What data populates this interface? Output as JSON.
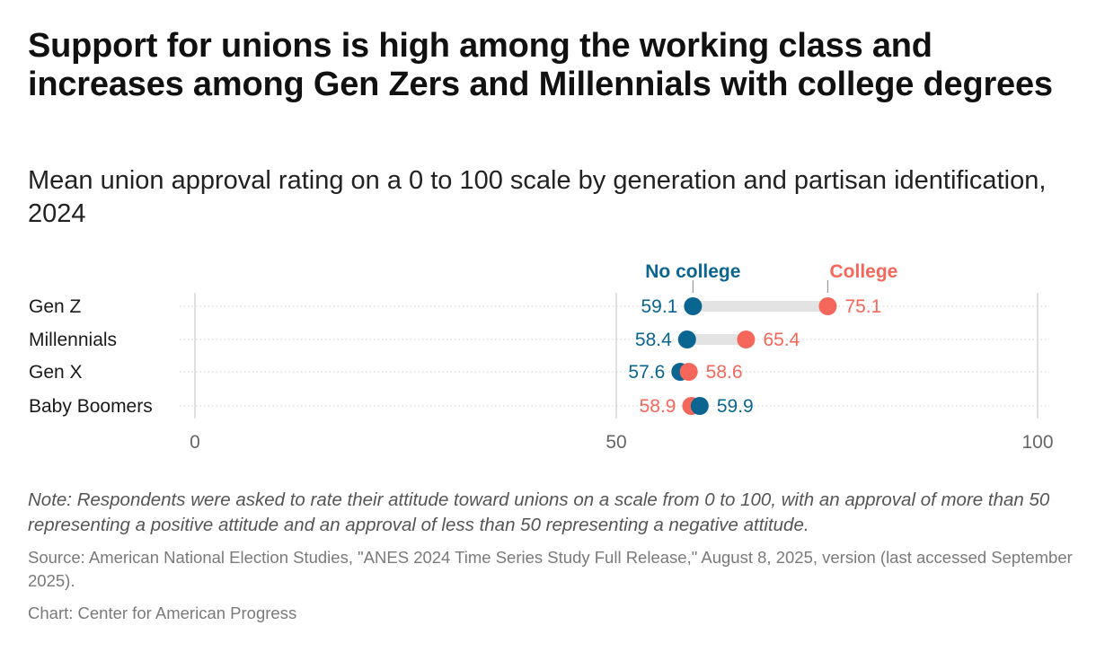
{
  "title": "Support for unions is high among the working class and increases among Gen Zers and Millennials with college degrees",
  "subtitle": "Mean union approval rating on a 0 to 100 scale by generation and partisan identification, 2024",
  "note": "Note: Respondents were asked to rate their attitude toward unions on a scale from 0 to 100, with an approval of more than 50 representing a positive attitude and an approval of less than 50 representing a negative attitude.",
  "source": "Source: American National Election Studies, \"ANES 2024 Time Series Study Full Release,\" August 8, 2025, version (last accessed September 2025).",
  "credit": "Chart: Center for American Progress",
  "colors": {
    "no_college": "#0b6591",
    "college": "#f4675a",
    "connector": "#e3e3e3",
    "grid": "#d5d5d5",
    "row_line": "#cfcfcf",
    "label": "#1a1a1a",
    "tick": "#666666"
  },
  "chart_data": {
    "type": "dumbbell",
    "categories": [
      "Gen Z",
      "Millennials",
      "Gen X",
      "Baby Boomers"
    ],
    "series": [
      {
        "name": "No college",
        "values": [
          59.1,
          58.4,
          57.6,
          59.9
        ]
      },
      {
        "name": "College",
        "values": [
          75.1,
          65.4,
          58.6,
          58.9
        ]
      }
    ],
    "value_labels": {
      "no_college": [
        "59.1",
        "58.4",
        "57.6",
        "59.9"
      ],
      "college": [
        "75.1",
        "65.4",
        "58.6",
        "58.9"
      ]
    },
    "xlim": [
      0,
      100
    ],
    "xticks": [
      0,
      50,
      100
    ],
    "xtick_labels": [
      "0",
      "50",
      "100"
    ],
    "grid": true,
    "legend": "top, labels above first row"
  }
}
